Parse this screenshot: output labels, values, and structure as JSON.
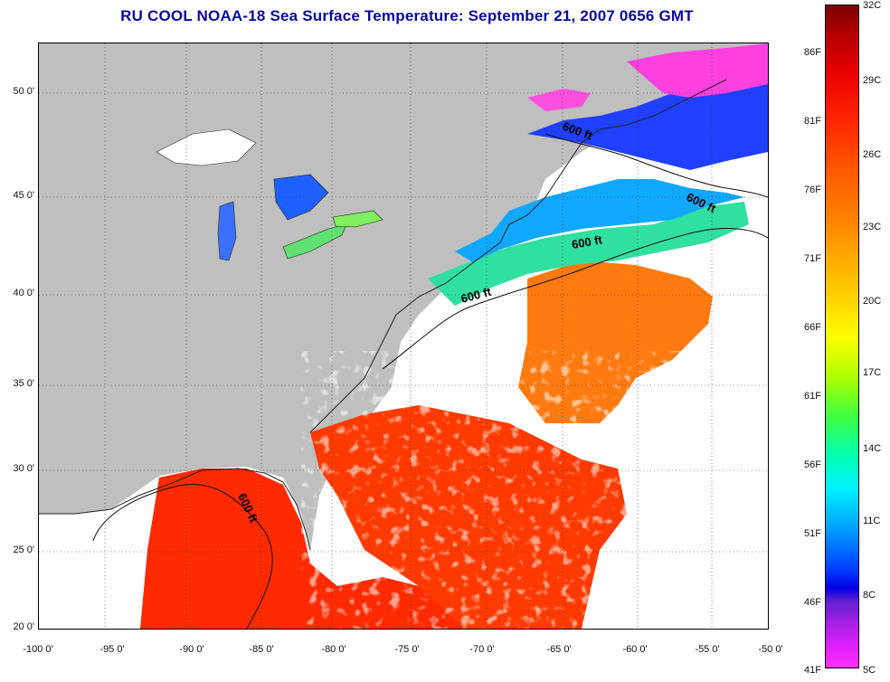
{
  "title": "RU COOL  NOAA-18  Sea Surface Temperature:  September 21, 2007 0656 GMT",
  "map": {
    "latitude_labels": [
      "50 0'",
      "45 0'",
      "40 0'",
      "35 0'",
      "30 0'",
      "25 0'",
      "20 0'"
    ],
    "longitude_labels": [
      "-100 0'",
      "-95 0'",
      "-90 0'",
      "-85 0'",
      "-80 0'",
      "-75 0'",
      "-70 0'",
      "-65 0'",
      "-60 0'",
      "-55 0'",
      "-50 0'"
    ],
    "contour_label": "600 ft",
    "colors": {
      "land": "#bfbfbf",
      "cloud": "#ffffff",
      "warm": "#ff2a00",
      "grid": "#333333"
    }
  },
  "colorbar": {
    "fahrenheit_labels": [
      "86F",
      "81F",
      "76F",
      "71F",
      "66F",
      "61F",
      "56F",
      "51F",
      "46F",
      "41F"
    ],
    "celsius_labels": [
      "32C",
      "29C",
      "26C",
      "23C",
      "20C",
      "17C",
      "14C",
      "11C",
      "8C",
      "5C"
    ]
  }
}
